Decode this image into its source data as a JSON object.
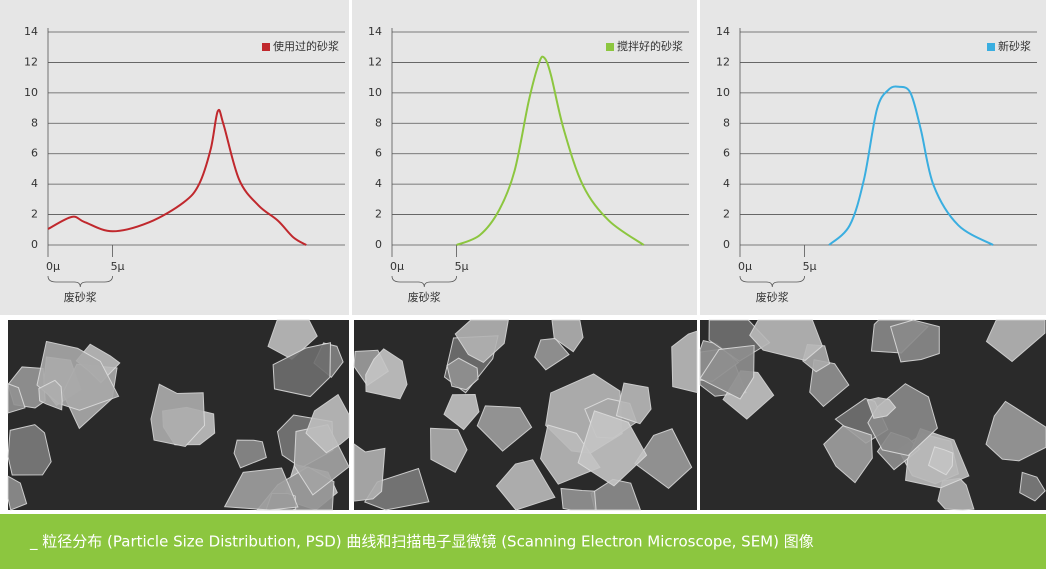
{
  "chart_data": [
    {
      "type": "line",
      "series": [
        {
          "name": "使用过的砂浆",
          "color": "#c0282d",
          "x": [
            0,
            1.85,
            2.85,
            5,
            7.85,
            10.5,
            11.7,
            12.6,
            13.15,
            13.6,
            14.8,
            16.3,
            17.8,
            19,
            20
          ],
          "values": [
            1.05,
            1.85,
            1.5,
            0.9,
            1.5,
            2.8,
            4,
            6.3,
            8.8,
            7.9,
            4.3,
            2.6,
            1.6,
            0.5,
            0
          ]
        }
      ],
      "xlim": [
        0,
        23
      ],
      "xticks": [
        {
          "value": 0,
          "label": "0μ"
        },
        {
          "value": 5,
          "label": "5μ"
        }
      ],
      "ylim": [
        0,
        14
      ],
      "yticks": [
        0,
        2,
        4,
        6,
        8,
        10,
        12,
        14
      ],
      "grid": true,
      "legend": "upper right",
      "annotation": "废砂浆"
    },
    {
      "type": "line",
      "series": [
        {
          "name": "搅拌好的砂浆",
          "color": "#8cc63f",
          "x": [
            5,
            6.8,
            8.3,
            9.5,
            10.6,
            11.4,
            11.8,
            12.3,
            13.3,
            14.8,
            16.8,
            19.5
          ],
          "values": [
            0,
            0.65,
            2.3,
            4.9,
            9.5,
            12,
            12.3,
            11.2,
            7.6,
            3.9,
            1.6,
            0
          ]
        }
      ],
      "xlim": [
        0,
        23
      ],
      "xticks": [
        {
          "value": 0,
          "label": "0μ"
        },
        {
          "value": 5,
          "label": "5μ"
        }
      ],
      "ylim": [
        0,
        14
      ],
      "yticks": [
        0,
        2,
        4,
        6,
        8,
        10,
        12,
        14
      ],
      "grid": true,
      "legend": "upper right",
      "annotation": "废砂浆"
    },
    {
      "type": "line",
      "series": [
        {
          "name": "新砂浆",
          "color": "#3aaee0",
          "x": [
            6.9,
            8.5,
            9.6,
            10.6,
            11.5,
            12.3,
            13.2,
            14,
            15,
            16.9,
            19.6
          ],
          "values": [
            0,
            1.3,
            4.3,
            8.9,
            10.2,
            10.4,
            10,
            7.6,
            3.9,
            1.3,
            0
          ]
        }
      ],
      "xlim": [
        0,
        23
      ],
      "xticks": [
        {
          "value": 0,
          "label": "0μ"
        },
        {
          "value": 5,
          "label": "5μ"
        }
      ],
      "ylim": [
        0,
        14
      ],
      "yticks": [
        0,
        2,
        4,
        6,
        8,
        10,
        12,
        14
      ],
      "grid": true,
      "legend": "upper right",
      "annotation": "废砂浆"
    }
  ],
  "caption": "_  粒径分布 (Particle Size Distribution, PSD) 曲线和扫描电子显微镜 (Scanning Electron Microscope, SEM) 图像"
}
